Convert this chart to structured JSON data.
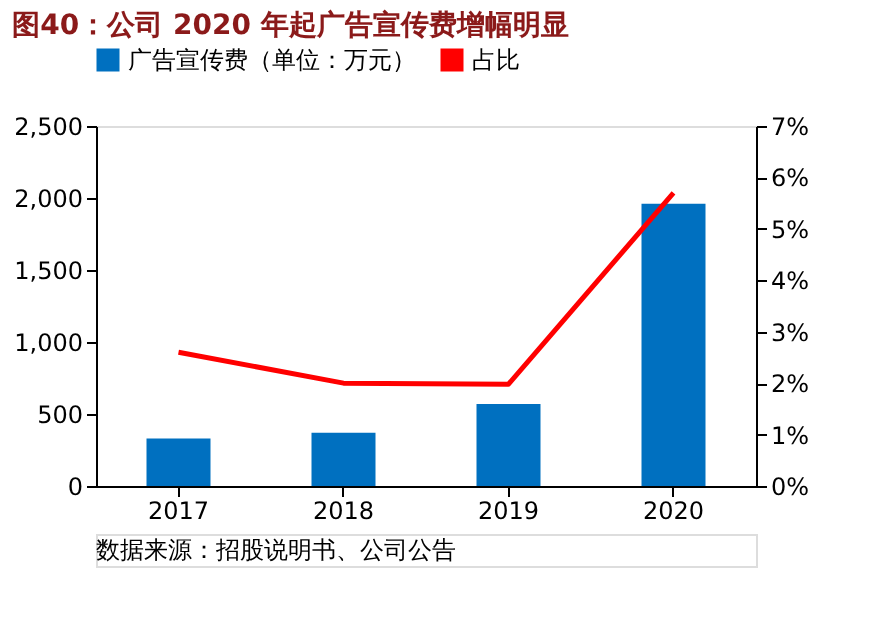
{
  "chart_data": {
    "type": "bar",
    "title": "图40：公司 2020 年起广告宣传费增幅明显",
    "categories": [
      "2017",
      "2018",
      "2019",
      "2020"
    ],
    "series": [
      {
        "name": "广告宣传费（单位：万元）",
        "color": "#0070c0",
        "values": [
          330,
          370,
          570,
          1960
        ]
      },
      {
        "name": "占比",
        "type": "line",
        "axis": "y2",
        "color": "#ff0000",
        "values": [
          2.6,
          2.0,
          1.98,
          5.7
        ]
      }
    ],
    "ylim": [
      0,
      2500
    ],
    "yticks": [
      0,
      500,
      {
        "value": 1000,
        "label": "1,000"
      },
      {
        "value": 1500,
        "label": "1,500"
      },
      {
        "value": 2000,
        "label": "2,000"
      },
      {
        "value": 2500,
        "label": "2,500"
      }
    ],
    "y2lim": [
      0,
      7
    ],
    "y2ticks": [
      {
        "value": 0,
        "label": "0%"
      },
      {
        "value": 1,
        "label": "1%"
      },
      {
        "value": 2,
        "label": "2%"
      },
      {
        "value": 3,
        "label": "3%"
      },
      {
        "value": 4,
        "label": "4%"
      },
      {
        "value": 5,
        "label": "5%"
      },
      {
        "value": 6,
        "label": "6%"
      },
      {
        "value": 7,
        "label": "7%"
      }
    ],
    "grid": false,
    "legend": "top",
    "annotations": [
      "数据来源：招股说明书、公司公告"
    ]
  }
}
